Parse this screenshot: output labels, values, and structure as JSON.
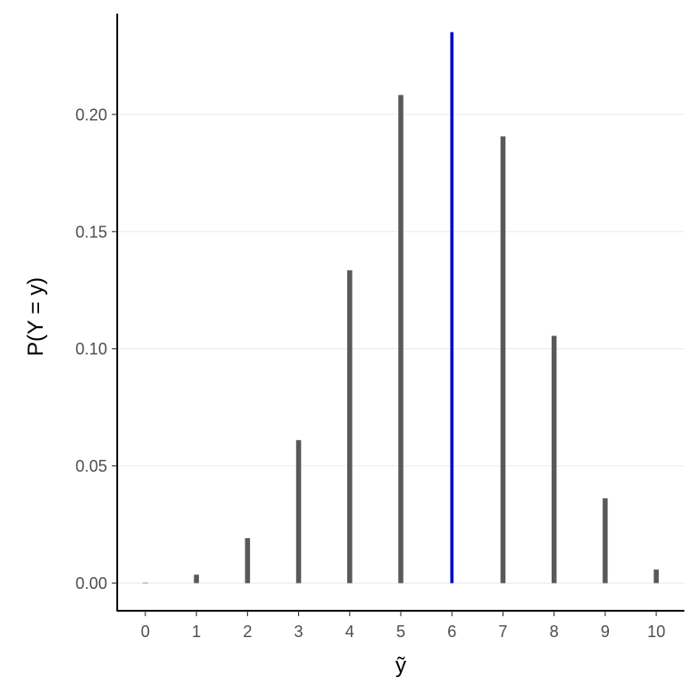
{
  "chart_data": {
    "type": "bar",
    "title": "",
    "xlabel": "ỹ",
    "ylabel": "P(Y = y)",
    "x": [
      0,
      1,
      2,
      3,
      4,
      5,
      6,
      7,
      8,
      9,
      10
    ],
    "x_tick_labels": [
      "0",
      "1",
      "2",
      "3",
      "4",
      "5",
      "6",
      "7",
      "8",
      "9",
      "10"
    ],
    "values": [
      0.0002,
      0.0036,
      0.0192,
      0.061,
      0.1335,
      0.2083,
      0.2351,
      0.1906,
      0.1055,
      0.0362,
      0.0058
    ],
    "highlight": {
      "x": 6,
      "color": "#0000cc"
    },
    "bar_color": "#595959",
    "ylim": [
      -0.0118,
      0.243
    ],
    "xlim": [
      -0.55,
      10.55
    ],
    "y_ticks": [
      0,
      0.05,
      0.1,
      0.15,
      0.2
    ],
    "y_tick_labels": [
      "0.00",
      "0.05",
      "0.10",
      "0.15",
      "0.20"
    ],
    "grid": {
      "horizontal": true,
      "vertical": false,
      "color": "#ebebeb"
    },
    "legend": "none"
  }
}
